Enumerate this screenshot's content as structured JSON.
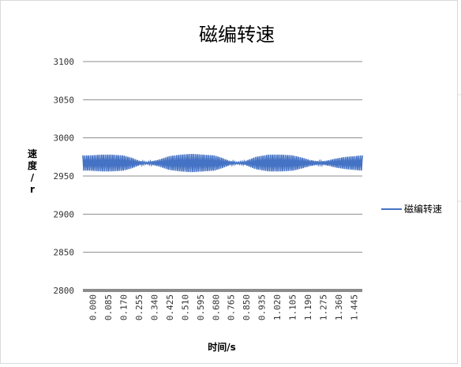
{
  "chart_data": {
    "type": "line",
    "title": "磁编转速",
    "xlabel": "时间/s",
    "ylabel": "速度/r",
    "ylim": [
      2800,
      3100
    ],
    "yticks": [
      3100,
      3050,
      3000,
      2950,
      2900,
      2850,
      2800
    ],
    "xlim": [
      0,
      1.49
    ],
    "xticks": [
      "0.000",
      "0.085",
      "0.170",
      "0.255",
      "0.340",
      "0.425",
      "0.510",
      "0.595",
      "0.680",
      "0.765",
      "0.850",
      "0.935",
      "1.020",
      "1.105",
      "1.190",
      "1.275",
      "1.360",
      "1.445"
    ],
    "grid": "horizontal",
    "legend": "right",
    "series": [
      {
        "name": "磁编转速",
        "color": "#4472C4",
        "mean": 2967,
        "x_step": 0.005,
        "envelope": {
          "x": [
            0.0,
            0.035,
            0.1,
            0.15,
            0.215,
            0.26,
            0.3,
            0.34,
            0.4,
            0.46,
            0.52,
            0.58,
            0.64,
            0.7,
            0.74,
            0.78,
            0.82,
            0.86,
            0.92,
            0.99,
            1.06,
            1.12,
            1.17,
            1.21,
            1.26,
            1.3,
            1.35,
            1.4,
            1.445,
            1.49
          ],
          "half": [
            10,
            10,
            11,
            11,
            10,
            7,
            3,
            1,
            4,
            9,
            11,
            12,
            11,
            10,
            7,
            3,
            1,
            2,
            8,
            11,
            11,
            10,
            7,
            4,
            2,
            3,
            6,
            8,
            9,
            10
          ]
        }
      }
    ]
  }
}
